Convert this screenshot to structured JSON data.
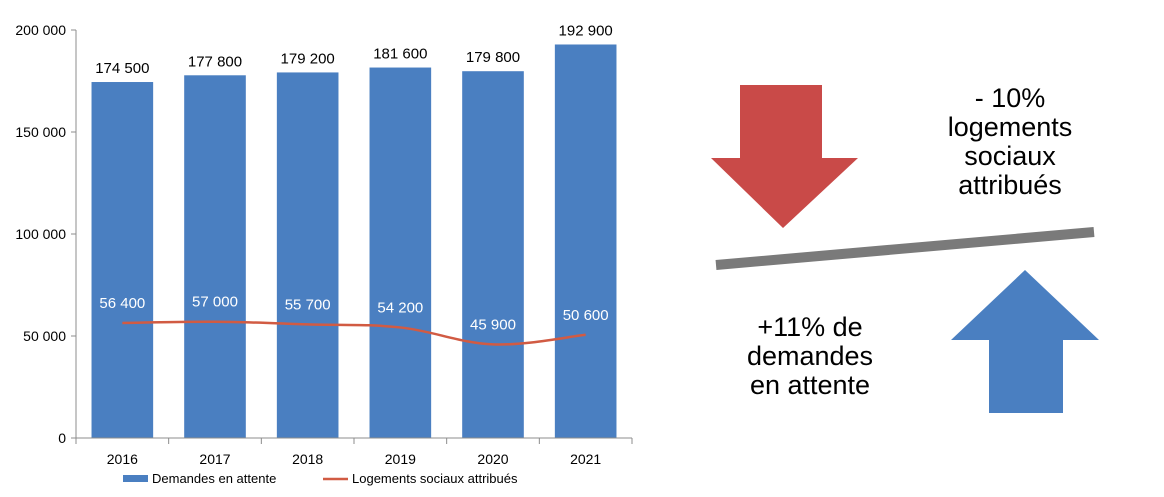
{
  "chart_data": {
    "type": "bar",
    "categories": [
      "2016",
      "2017",
      "2018",
      "2019",
      "2020",
      "2021"
    ],
    "series": [
      {
        "name": "Demandes en attente",
        "kind": "bar",
        "color": "#4a7fc1",
        "values": [
          174500,
          177800,
          179200,
          181600,
          179800,
          192900
        ],
        "labels": [
          "174 500",
          "177 800",
          "179 200",
          "181 600",
          "179 800",
          "192 900"
        ]
      },
      {
        "name": "Logements sociaux attribués",
        "kind": "line",
        "color": "#d15b43",
        "values": [
          56400,
          57000,
          55700,
          54200,
          45900,
          50600
        ],
        "labels": [
          "56 400",
          "57 000",
          "55 700",
          "54 200",
          "45 900",
          "50 600"
        ]
      }
    ],
    "ylim": [
      0,
      200000
    ],
    "yticks": [
      0,
      50000,
      100000,
      150000,
      200000
    ],
    "ytick_labels": [
      "0",
      "50 000",
      "100 000",
      "150 000",
      "200 000"
    ],
    "legend_position": "bottom",
    "grid": false
  },
  "annotations": {
    "down": {
      "lines": [
        "- 10%",
        "logements",
        "sociaux",
        "attribués"
      ],
      "arrow_color": "#c94a48"
    },
    "up": {
      "lines": [
        "+11% de",
        "demandes",
        "en attente"
      ],
      "arrow_color": "#4a7fc1"
    },
    "balance_color": "#7a7a7a"
  }
}
